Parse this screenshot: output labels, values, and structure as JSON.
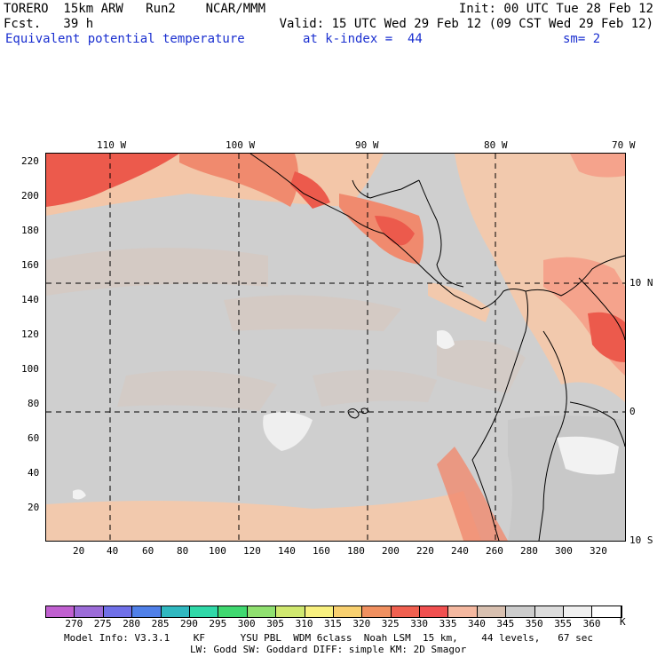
{
  "header": {
    "line1_left": "TORERO  15km ARW   Run2    NCAR/MMM",
    "line1_right": "Init: 00 UTC Tue 28 Feb 12",
    "line2_left": "Fcst.   39 h",
    "line2_right": "Valid: 15 UTC Wed 29 Feb 12 (09 CST Wed 29 Feb 12)",
    "field_name": "Equivalent potential temperature",
    "level": "at k-index =  44",
    "smoothing": "sm= 2"
  },
  "map": {
    "top_lon_labels": [
      "110 W",
      "100 W",
      "90 W",
      "80 W",
      "70 W"
    ],
    "right_lat_labels": [
      "10 N",
      "0",
      "10 S"
    ],
    "y_tick_labels": [
      "220",
      "200",
      "180",
      "160",
      "140",
      "120",
      "100",
      "80",
      "60",
      "40",
      "20"
    ],
    "x_tick_labels": [
      "20",
      "40",
      "60",
      "80",
      "100",
      "120",
      "140",
      "160",
      "180",
      "200",
      "220",
      "240",
      "260",
      "280",
      "300",
      "320"
    ],
    "colors": {
      "background_field": "#cfcfcf",
      "warm": "#f5c7a8",
      "hot": "#f08a6e",
      "hottest": "#ec5a4c",
      "cool": "#dddddd",
      "coldest": "#f2f2f2",
      "tan": "#d6c3b6"
    }
  },
  "colorbar": {
    "unit": "K",
    "labels": [
      "270",
      "275",
      "280",
      "285",
      "290",
      "295",
      "300",
      "305",
      "310",
      "315",
      "320",
      "325",
      "330",
      "335",
      "340",
      "345",
      "350",
      "355",
      "360"
    ],
    "colors": [
      "#c060d0",
      "#9c6cd8",
      "#7070e8",
      "#5080e8",
      "#30b8c0",
      "#30d8a8",
      "#40d870",
      "#90e070",
      "#d0e870",
      "#f8f080",
      "#f8d070",
      "#f09060",
      "#f06050",
      "#f05050",
      "#f4b8a0",
      "#d8c0b0",
      "#cccccc",
      "#dcdcdc",
      "#f0f0f0",
      "#ffffff"
    ]
  },
  "footer": {
    "line1": "Model Info: V3.3.1    KF      YSU PBL  WDM 6class  Noah LSM  15 km,    44 levels,   67 sec",
    "line2": "LW: Godd SW: Goddard DIFF: simple KM: 2D Smagor"
  }
}
